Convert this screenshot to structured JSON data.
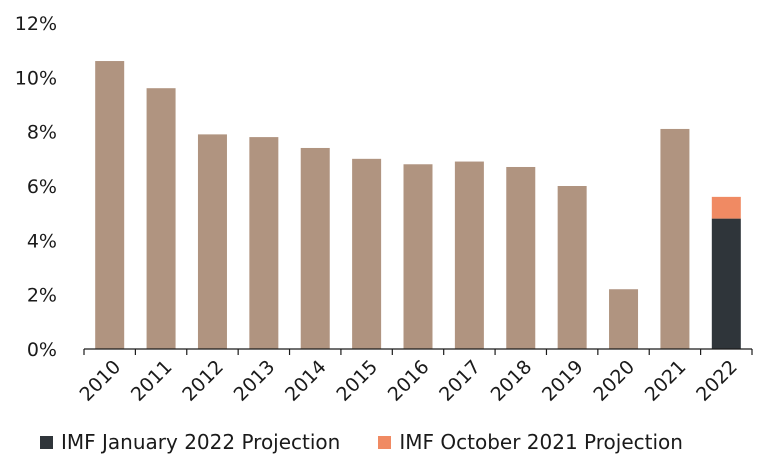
{
  "chart_data": {
    "type": "bar",
    "stacked": true,
    "categories": [
      "2010",
      "2011",
      "2012",
      "2013",
      "2014",
      "2015",
      "2016",
      "2017",
      "2018",
      "2019",
      "2020",
      "2021",
      "2022"
    ],
    "series": [
      {
        "name": "",
        "color": "#b09480",
        "values": [
          10.6,
          9.6,
          7.9,
          7.8,
          7.4,
          7.0,
          6.8,
          6.9,
          6.7,
          6.0,
          2.2,
          8.1,
          null
        ]
      },
      {
        "name": "IMF January 2022 Projection",
        "color": "#2f353a",
        "values": [
          null,
          null,
          null,
          null,
          null,
          null,
          null,
          null,
          null,
          null,
          null,
          null,
          4.8
        ]
      },
      {
        "name": "IMF October 2021 Projection",
        "color": "#f08a63",
        "values": [
          null,
          null,
          null,
          null,
          null,
          null,
          null,
          null,
          null,
          null,
          null,
          null,
          0.8
        ],
        "note_total": 5.6
      }
    ],
    "yticks": [
      "0%",
      "2%",
      "4%",
      "6%",
      "8%",
      "10%",
      "12%"
    ],
    "ylim": [
      0,
      12
    ],
    "grid": false,
    "legend_placement": "bottom",
    "title": "",
    "xlabel": "",
    "ylabel": ""
  },
  "legend": {
    "items": [
      {
        "label": "IMF January 2022 Projection",
        "color": "#2f353a"
      },
      {
        "label": "IMF October 2021 Projection",
        "color": "#f08a63"
      }
    ]
  }
}
